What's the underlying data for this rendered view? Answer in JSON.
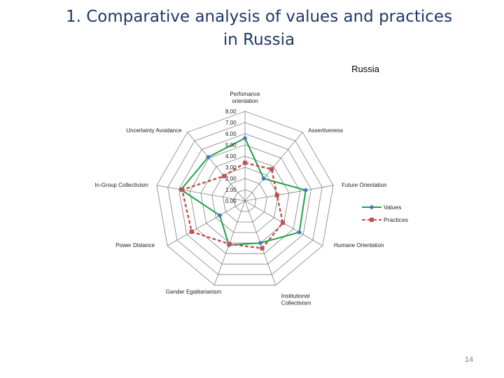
{
  "slide": {
    "title_line1": "1. Comparative analysis of values and practices",
    "title_line2": "in Russia",
    "page_number": "14"
  },
  "colors": {
    "values": "#1aa34a",
    "practices": "#c0504d",
    "grid": "#808080",
    "title": "#1f3864"
  },
  "chart_data": {
    "type": "radar",
    "title": "Russia",
    "axes": [
      [
        "Perfomance",
        "orientation"
      ],
      [
        "Assertiveness"
      ],
      [
        "Future Orientation"
      ],
      [
        "Humane Orientation"
      ],
      [
        "Institutional",
        "Collectivism"
      ],
      [
        "Gender Egalitarianism"
      ],
      [
        "Power Distance"
      ],
      [
        "In-Group Collectivism"
      ],
      [
        "Uncertainty Avoidance"
      ]
    ],
    "tick_labels": [
      "0.00",
      "1.00",
      "2.00",
      "3.00",
      "4.00",
      "5.00",
      "6.00",
      "7.00",
      "8.00"
    ],
    "range": [
      0,
      8
    ],
    "legend_position": "right",
    "series": [
      {
        "name": "Values",
        "style": "solid",
        "values": [
          5.6,
          2.6,
          5.5,
          5.6,
          4.0,
          4.2,
          2.6,
          5.8,
          5.1
        ]
      },
      {
        "name": "Practices",
        "style": "dashed",
        "values": [
          3.4,
          3.7,
          2.9,
          3.9,
          4.5,
          4.1,
          5.5,
          5.7,
          2.9
        ]
      }
    ]
  }
}
